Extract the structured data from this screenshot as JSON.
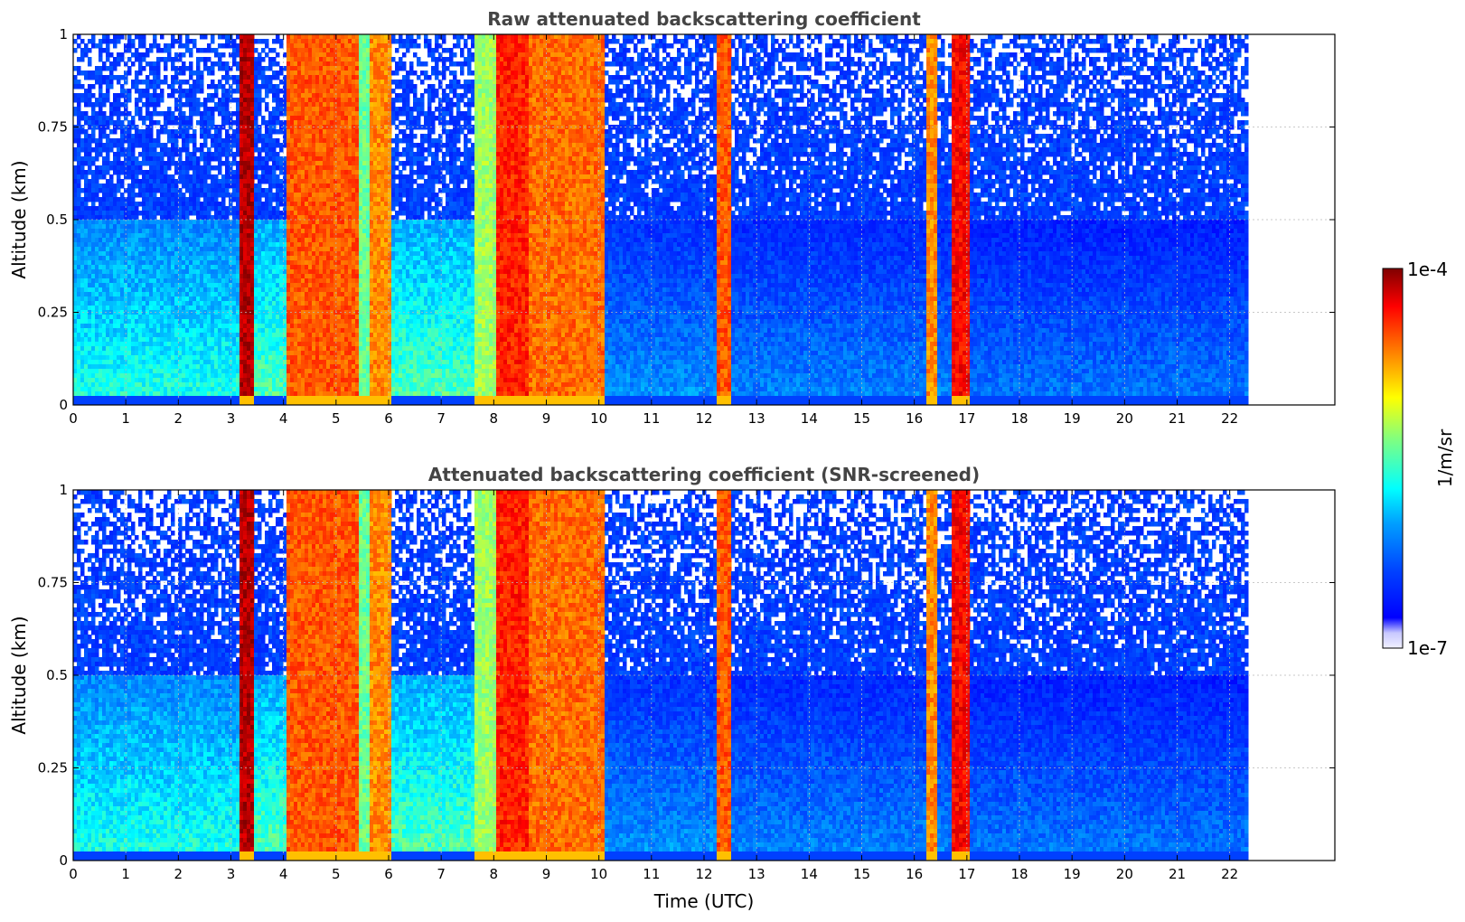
{
  "chart_data": [
    {
      "type": "heatmap",
      "title": "Raw attenuated backscattering coefficient",
      "xlabel": "",
      "ylabel": "Altitude (km)",
      "xlim": [
        0,
        24
      ],
      "ylim": [
        0,
        1
      ],
      "x_ticks": [
        "0",
        "1",
        "2",
        "3",
        "4",
        "5",
        "6",
        "7",
        "8",
        "9",
        "10",
        "11",
        "12",
        "13",
        "14",
        "15",
        "16",
        "17",
        "18",
        "19",
        "20",
        "21",
        "22"
      ],
      "y_ticks": [
        "0",
        "0.25",
        "0.5",
        "0.75",
        "1"
      ],
      "data_end_time": 22.3,
      "grid": true,
      "screened": false,
      "column_intensity_profile": [
        {
          "t_start": 0.0,
          "t_end": 3.1,
          "level": 0.35
        },
        {
          "t_start": 3.1,
          "t_end": 3.4,
          "level": 0.95
        },
        {
          "t_start": 3.4,
          "t_end": 4.0,
          "level": 0.4
        },
        {
          "t_start": 4.0,
          "t_end": 5.4,
          "level": 0.8
        },
        {
          "t_start": 5.4,
          "t_end": 5.6,
          "level": 0.5
        },
        {
          "t_start": 5.6,
          "t_end": 6.0,
          "level": 0.75
        },
        {
          "t_start": 6.0,
          "t_end": 7.6,
          "level": 0.4
        },
        {
          "t_start": 7.6,
          "t_end": 8.0,
          "level": 0.55
        },
        {
          "t_start": 8.0,
          "t_end": 8.6,
          "level": 0.85
        },
        {
          "t_start": 8.6,
          "t_end": 10.1,
          "level": 0.78
        },
        {
          "t_start": 10.1,
          "t_end": 12.2,
          "level": 0.2
        },
        {
          "t_start": 12.2,
          "t_end": 12.45,
          "level": 0.8
        },
        {
          "t_start": 12.45,
          "t_end": 16.2,
          "level": 0.18
        },
        {
          "t_start": 16.2,
          "t_end": 16.4,
          "level": 0.75
        },
        {
          "t_start": 16.4,
          "t_end": 16.7,
          "level": 0.18
        },
        {
          "t_start": 16.7,
          "t_end": 17.05,
          "level": 0.88
        },
        {
          "t_start": 17.05,
          "t_end": 22.3,
          "level": 0.16
        }
      ]
    },
    {
      "type": "heatmap",
      "title": "Attenuated backscattering coefficient (SNR-screened)",
      "xlabel": "Time (UTC)",
      "ylabel": "Altitude (km)",
      "xlim": [
        0,
        24
      ],
      "ylim": [
        0,
        1
      ],
      "x_ticks": [
        "0",
        "1",
        "2",
        "3",
        "4",
        "5",
        "6",
        "7",
        "8",
        "9",
        "10",
        "11",
        "12",
        "13",
        "14",
        "15",
        "16",
        "17",
        "18",
        "19",
        "20",
        "21",
        "22"
      ],
      "y_ticks": [
        "0",
        "0.25",
        "0.5",
        "0.75",
        "1"
      ],
      "data_end_time": 22.3,
      "grid": true,
      "screened": true
    }
  ],
  "colorbar": {
    "label": "1/m/sr",
    "max_label": "1e-4",
    "min_label": "1e-7",
    "colormap": "jet",
    "scale": "log",
    "range": [
      1e-07,
      0.0001
    ]
  }
}
